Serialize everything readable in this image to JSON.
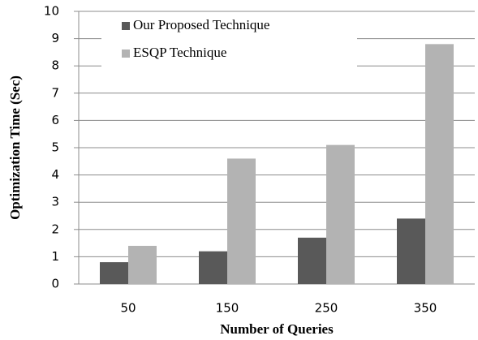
{
  "chart_data": {
    "type": "bar",
    "x_label": "Number of Queries",
    "y_label": "Optimization Time (Sec)",
    "categories": [
      "50",
      "150",
      "250",
      "350"
    ],
    "series": [
      {
        "name": "Our Proposed Technique",
        "color": "#595959",
        "values": [
          0.8,
          1.2,
          1.7,
          2.4
        ]
      },
      {
        "name": "ESQP Technique",
        "color": "#b3b3b3",
        "values": [
          1.4,
          4.6,
          5.1,
          8.8
        ]
      }
    ],
    "ylim": [
      0,
      10
    ],
    "yticks": [
      0,
      1,
      2,
      3,
      4,
      5,
      6,
      7,
      8,
      9,
      10
    ],
    "grid": true
  }
}
